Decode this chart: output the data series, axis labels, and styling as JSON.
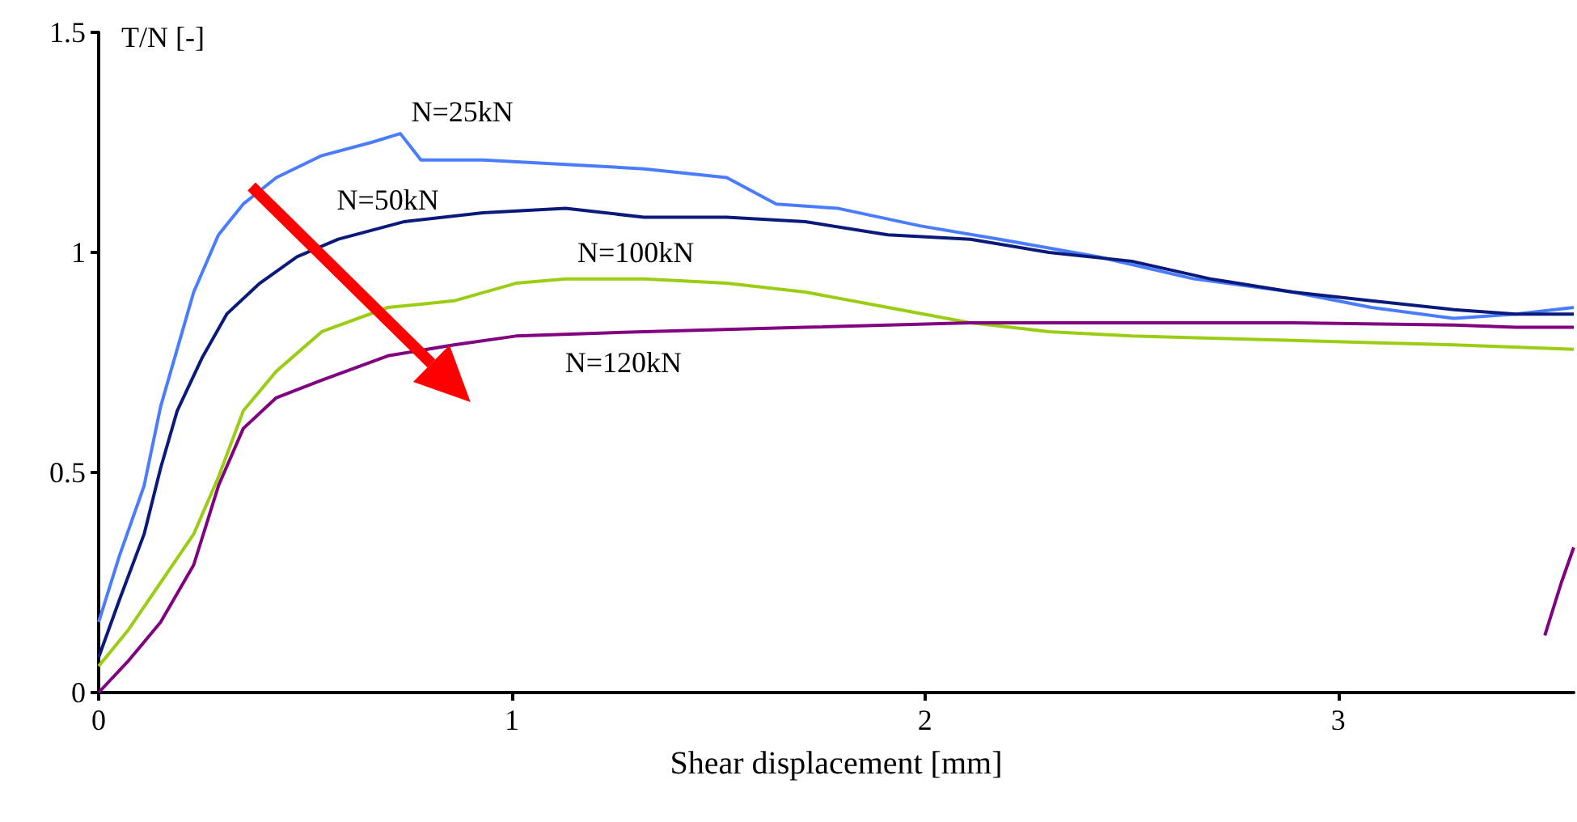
{
  "chart_data": {
    "type": "line",
    "xlabel": "Shear displacement [mm]",
    "ylabel": "T/N [-]",
    "xlim": [
      0,
      3.57
    ],
    "xticks": [
      0,
      1,
      2,
      3
    ],
    "ylim": [
      0,
      1.5
    ],
    "yticks": [
      0,
      0.5,
      1,
      1.5
    ],
    "grid": false,
    "legend": false,
    "marker": "none",
    "line_style": "solid",
    "series": [
      {
        "name": "N=25kN",
        "color": "#4a7cff",
        "x": [
          0,
          0.05,
          0.11,
          0.15,
          0.19,
          0.23,
          0.29,
          0.35,
          0.43,
          0.54,
          0.66,
          0.73,
          0.78,
          0.93,
          1.13,
          1.32,
          1.52,
          1.64,
          1.79,
          1.99,
          2.18,
          2.42,
          2.65,
          2.89,
          3.08,
          3.28,
          3.43,
          3.57
        ],
        "values": [
          0.16,
          0.31,
          0.47,
          0.65,
          0.78,
          0.91,
          1.04,
          1.11,
          1.17,
          1.22,
          1.25,
          1.27,
          1.21,
          1.21,
          1.2,
          1.19,
          1.17,
          1.11,
          1.1,
          1.06,
          1.03,
          0.99,
          0.94,
          0.91,
          0.875,
          0.85,
          0.86,
          0.875
        ]
      },
      {
        "name": "N=50kN",
        "color": "#0a1a7a",
        "x": [
          0,
          0.05,
          0.11,
          0.15,
          0.19,
          0.25,
          0.31,
          0.39,
          0.48,
          0.58,
          0.74,
          0.93,
          1.13,
          1.32,
          1.52,
          1.71,
          1.91,
          2.11,
          2.3,
          2.5,
          2.69,
          2.89,
          3.08,
          3.28,
          3.43,
          3.57
        ],
        "values": [
          0.08,
          0.21,
          0.36,
          0.51,
          0.64,
          0.76,
          0.86,
          0.93,
          0.99,
          1.03,
          1.07,
          1.09,
          1.1,
          1.08,
          1.08,
          1.07,
          1.04,
          1.03,
          1,
          0.98,
          0.94,
          0.91,
          0.89,
          0.87,
          0.86,
          0.86
        ]
      },
      {
        "name": "N=100kN",
        "color": "#9acd14",
        "x": [
          0,
          0.07,
          0.15,
          0.23,
          0.29,
          0.35,
          0.43,
          0.54,
          0.7,
          0.86,
          1.01,
          1.13,
          1.32,
          1.52,
          1.71,
          1.91,
          2.11,
          2.3,
          2.5,
          2.69,
          2.89,
          3.08,
          3.28,
          3.57
        ],
        "values": [
          0.06,
          0.14,
          0.25,
          0.36,
          0.49,
          0.64,
          0.73,
          0.82,
          0.875,
          0.89,
          0.93,
          0.94,
          0.94,
          0.93,
          0.91,
          0.875,
          0.84,
          0.82,
          0.81,
          0.805,
          0.8,
          0.795,
          0.79,
          0.78
        ]
      },
      {
        "name": "N=120kN",
        "color": "#800080",
        "x": [
          0,
          0.07,
          0.15,
          0.23,
          0.29,
          0.35,
          0.43,
          0.54,
          0.7,
          0.86,
          1.01,
          1.32,
          1.71,
          2.11,
          2.5,
          2.89,
          3.28,
          3.43,
          3.57,
          null,
          3.5,
          3.54,
          3.57
        ],
        "values": [
          0,
          0.07,
          0.16,
          0.29,
          0.47,
          0.6,
          0.67,
          0.71,
          0.765,
          0.79,
          0.81,
          0.82,
          0.83,
          0.84,
          0.84,
          0.84,
          0.835,
          0.83,
          0.83,
          null,
          0.13,
          0.25,
          0.33
        ]
      }
    ]
  }
}
